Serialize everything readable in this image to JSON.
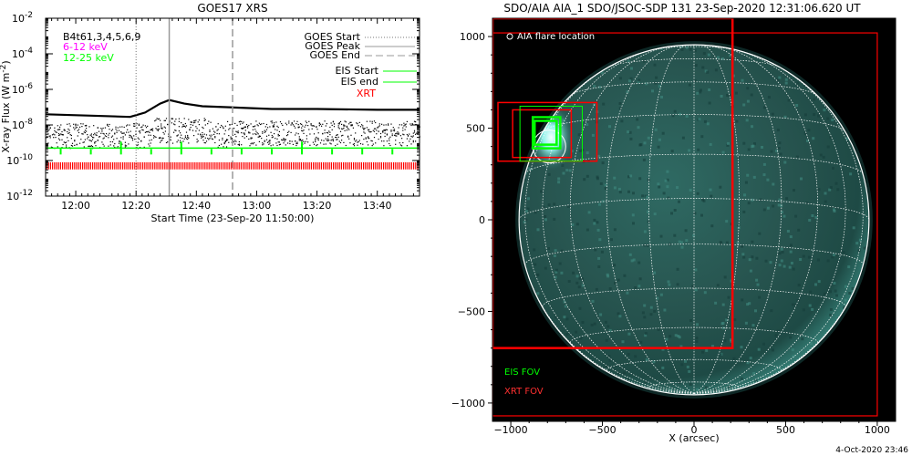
{
  "timestamp": "4-Oct-2020 23:46",
  "chart_data": [
    {
      "type": "line",
      "title": "GOES17 XRS",
      "xlabel": "Start Time (23-Sep-20 11:50:00)",
      "ylabel": "X-ray Flux (W m",
      "ylabel_sup": "-2",
      "ylabel_end": ")",
      "x_ticks": [
        "12:00",
        "12:20",
        "12:40",
        "13:00",
        "13:20",
        "13:40"
      ],
      "x_tick_minutes": [
        10,
        30,
        50,
        70,
        90,
        110
      ],
      "xlim_minutes": [
        0,
        124
      ],
      "ylim_log10": [
        -12,
        -2
      ],
      "y_ticks": [
        {
          "base": "10",
          "exp": "-12",
          "log": -12
        },
        {
          "base": "10",
          "exp": "-10",
          "log": -10
        },
        {
          "base": "10",
          "exp": "-8",
          "log": -8
        },
        {
          "base": "10",
          "exp": "-6",
          "log": -6
        },
        {
          "base": "10",
          "exp": "-4",
          "log": -4
        },
        {
          "base": "10",
          "exp": "-2",
          "log": -2
        }
      ],
      "channels_label": "B4t61,3,4,5,6,9",
      "legend_energy": [
        {
          "name": "6-12 keV",
          "color": "#ff00ff"
        },
        {
          "name": "12-25 keV",
          "color": "#00ff00"
        }
      ],
      "legend_lines": [
        {
          "name": "GOES Start",
          "style": "dotted",
          "color": "#777777"
        },
        {
          "name": "GOES Peak",
          "style": "solid",
          "color": "#999999"
        },
        {
          "name": "GOES End",
          "style": "dashed",
          "color": "#999999"
        },
        {
          "name": "EIS Start",
          "style": "solid",
          "color": "#00ff00"
        },
        {
          "name": "EIS end",
          "style": "solid",
          "color": "#00ff00"
        },
        {
          "name": "XRT",
          "style": "solid",
          "color": "#ff0000"
        }
      ],
      "goes_start_min": 30,
      "goes_peak_min": 41,
      "goes_end_min": 62,
      "flux_series": [
        {
          "t": 0,
          "log": -7.4
        },
        {
          "t": 10,
          "log": -7.45
        },
        {
          "t": 20,
          "log": -7.5
        },
        {
          "t": 28,
          "log": -7.55
        },
        {
          "t": 33,
          "log": -7.3
        },
        {
          "t": 38,
          "log": -6.8
        },
        {
          "t": 41,
          "log": -6.6
        },
        {
          "t": 46,
          "log": -6.8
        },
        {
          "t": 52,
          "log": -6.95
        },
        {
          "t": 60,
          "log": -7.0
        },
        {
          "t": 75,
          "log": -7.1
        },
        {
          "t": 90,
          "log": -7.1
        },
        {
          "t": 110,
          "log": -7.15
        },
        {
          "t": 124,
          "log": -7.15
        }
      ],
      "eis_band_log": -9.3,
      "eis_marks_min": [
        5,
        25,
        45,
        65,
        85,
        105
      ],
      "eis_long_marks_min": [
        25,
        45,
        85
      ],
      "xrt_band_log": [
        -10.1,
        -10.5
      ]
    },
    {
      "type": "image",
      "title": "SDO/AIA AIA_1 SDO/JSOC-SDP 131 23-Sep-2020 12:31:06.620 UT",
      "xlabel": "X (arcsec)",
      "ylabel": "",
      "xlim": [
        -1100,
        1100
      ],
      "ylim": [
        -1100,
        1100
      ],
      "x_ticks": [
        -1000,
        -500,
        0,
        500,
        1000
      ],
      "y_ticks": [
        -1000,
        -500,
        0,
        500,
        1000
      ],
      "solar_radius_arcsec": 955,
      "flare_marker_label": "AIA flare location",
      "flare_location": {
        "x": -790,
        "y": 400
      },
      "eis_fov_label": "EIS FOV",
      "xrt_fov_label": "XRT FOV",
      "eis_color": "#00ff00",
      "xrt_color": "#ff0000",
      "xrt_large_fov": {
        "x0": -1100,
        "x1": 1000,
        "y0": -1070,
        "y1": 1020
      },
      "xrt_slit_fov": {
        "x0": -1100,
        "x1": 210,
        "y0": -700,
        "y1": 1100
      },
      "xrt_small_fovs": [
        {
          "x0": -1070,
          "x1": -530,
          "y0": 320,
          "y1": 640
        },
        {
          "x0": -990,
          "x1": -670,
          "y0": 340,
          "y1": 600
        }
      ],
      "eis_fovs": [
        {
          "x0": -950,
          "x1": -610,
          "y0": 320,
          "y1": 620
        },
        {
          "x0": -880,
          "x1": -730,
          "y0": 390,
          "y1": 560
        },
        {
          "x0": -870,
          "x1": -750,
          "y0": 410,
          "y1": 540
        }
      ]
    }
  ]
}
